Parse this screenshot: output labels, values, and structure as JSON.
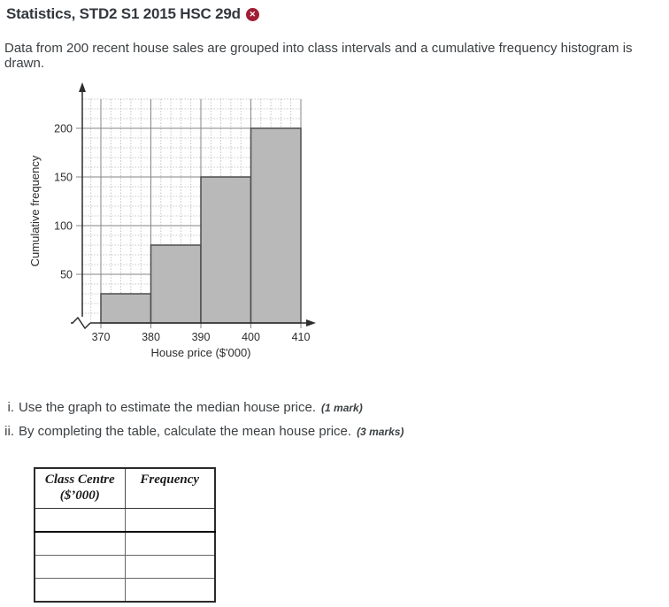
{
  "header": {
    "title": "Statistics, STD2 S1 2015 HSC 29d",
    "close_icon": "circle-x",
    "close_glyph": "✕",
    "accent_color": "#a01d35"
  },
  "intro": "Data from 200 recent house sales are grouped into class intervals and a cumulative frequency histogram is drawn.",
  "chart_data": {
    "type": "bar",
    "subtype": "cumulative-frequency-histogram",
    "title": "",
    "xlabel": "House price ($'000)",
    "ylabel": "Cumulative frequency",
    "x_ticks": [
      370,
      380,
      390,
      400,
      410
    ],
    "y_ticks": [
      50,
      100,
      150,
      200
    ],
    "categories": [
      "370-380",
      "380-390",
      "390-400",
      "400-410"
    ],
    "values": [
      30,
      80,
      150,
      200
    ],
    "xlim": [
      370,
      410
    ],
    "ylim": [
      0,
      230
    ],
    "grid": "minor-dotted-major-solid",
    "legend": "none",
    "axis_break_on_x": true,
    "bar_fill": "#b9b9b9",
    "bar_stroke": "#4c4c4c"
  },
  "questions": [
    {
      "numeral": "i.",
      "text": "Use the graph to estimate the median house price.",
      "marks": "(1 mark)"
    },
    {
      "numeral": "ii.",
      "text": "By completing the table, calculate the mean house price.",
      "marks": "(3 marks)"
    }
  ],
  "table": {
    "col1_title": "Class Centre",
    "col1_subtitle": "($’000)",
    "col2_title": "Frequency",
    "row_count": 4
  }
}
